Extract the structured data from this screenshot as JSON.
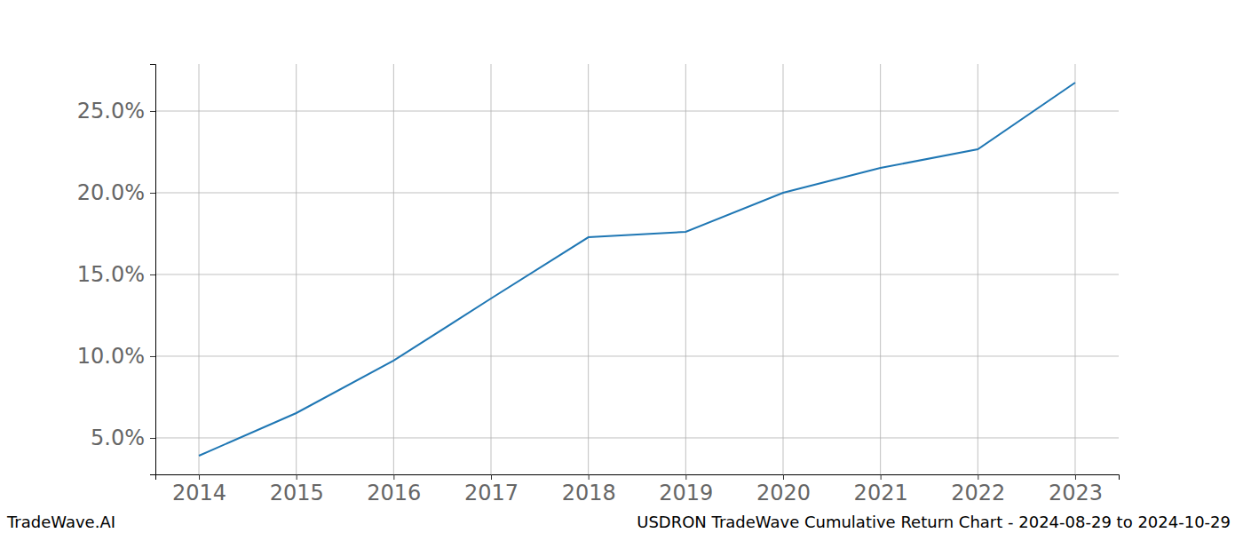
{
  "chart_data": {
    "type": "line",
    "title": "USDRON TradeWave Cumulative Return Chart - 2024-08-29 to 2024-10-29",
    "annotations": [
      "TradeWave.AI"
    ],
    "x": [
      2014,
      2015,
      2016,
      2017,
      2018,
      2019,
      2020,
      2021,
      2022,
      2023
    ],
    "values": [
      3.91,
      6.52,
      9.73,
      13.53,
      17.28,
      17.61,
      20.0,
      21.52,
      22.66,
      26.74
    ],
    "color": "#1f77b4",
    "xlim": [
      2013.553,
      2023.447
    ],
    "ylim": [
      2.77,
      27.88
    ],
    "xticks": [
      2014,
      2015,
      2016,
      2017,
      2018,
      2019,
      2020,
      2021,
      2022,
      2023
    ],
    "yticks": [
      {
        "value": 5,
        "label": "5.0%"
      },
      {
        "value": 10,
        "label": "10.0%"
      },
      {
        "value": 15,
        "label": "15.0%"
      },
      {
        "value": 20,
        "label": "20.0%"
      },
      {
        "value": 25,
        "label": "25.0%"
      }
    ],
    "grid": true
  }
}
